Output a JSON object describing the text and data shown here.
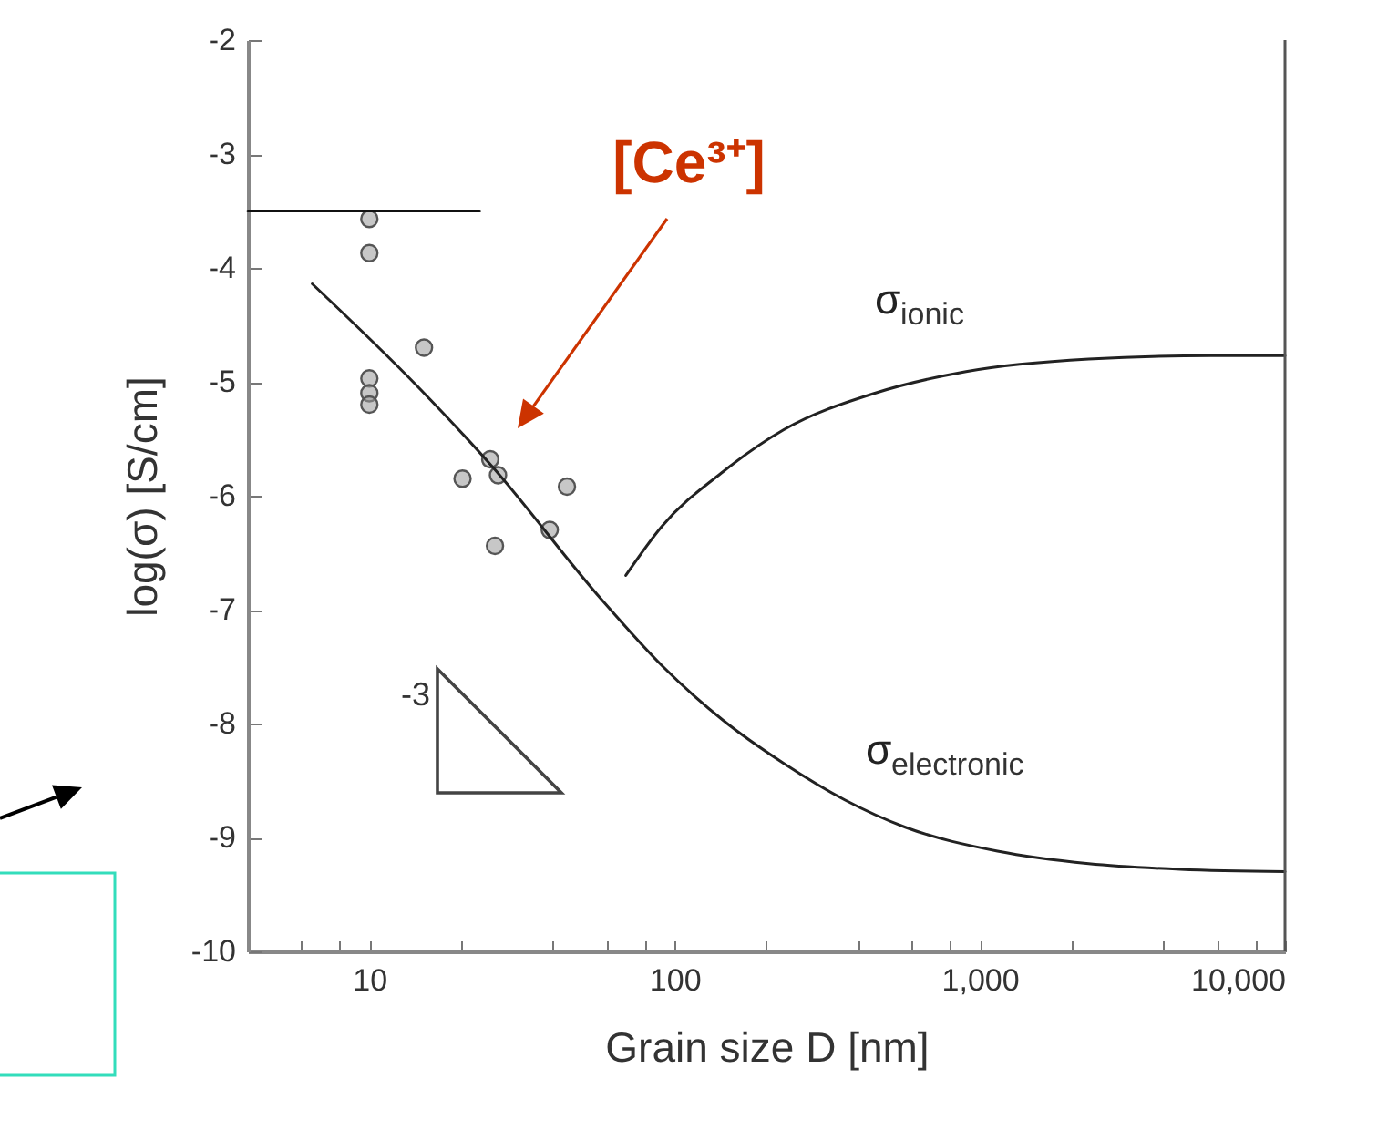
{
  "chart_data": {
    "type": "scatter",
    "xlabel": "Grain size D [nm]",
    "ylabel": "log(σ) [S/cm]",
    "log": "x",
    "xlim": [
      4,
      10000
    ],
    "ylim": [
      -10,
      -2
    ],
    "xticks": [
      {
        "value": 6,
        "label": null
      },
      {
        "value": 8,
        "label": null
      },
      {
        "value": 10,
        "label": "10"
      },
      {
        "value": 20,
        "label": null
      },
      {
        "value": 40,
        "label": null
      },
      {
        "value": 60,
        "label": null
      },
      {
        "value": 80,
        "label": null
      },
      {
        "value": 100,
        "label": "100"
      },
      {
        "value": 200,
        "label": null
      },
      {
        "value": 400,
        "label": null
      },
      {
        "value": 600,
        "label": null
      },
      {
        "value": 800,
        "label": null
      },
      {
        "value": 1000,
        "label": "1,000"
      },
      {
        "value": 2000,
        "label": null
      },
      {
        "value": 4000,
        "label": null
      },
      {
        "value": 6000,
        "label": null
      },
      {
        "value": 8000,
        "label": null
      },
      {
        "value": 10000,
        "label": "10,000"
      }
    ],
    "yticks": [
      -10,
      -9,
      -8,
      -7,
      -6,
      -5,
      -4,
      -3,
      -2
    ],
    "series": [
      {
        "marker": "circle",
        "color": "#999999",
        "x": [
          10,
          10,
          15.1,
          10,
          10,
          10,
          20.2,
          24.9,
          26.4,
          44.4,
          39,
          25.8
        ],
        "values": [
          -3.57,
          -3.87,
          -4.7,
          -4.97,
          -5.1,
          -5.2,
          -5.85,
          -5.68,
          -5.82,
          -5.92,
          -6.3,
          -6.44
        ]
      },
      {
        "type": "line",
        "name": "σ$_{ionic}$",
        "color": "#222222",
        "x": [
          69.2,
          90.8,
          144,
          228,
          453,
          902,
          2275,
          5700,
          10000
        ],
        "values": [
          -6.7,
          -6.27,
          -5.79,
          -5.42,
          -5.1,
          -4.91,
          -4.8,
          -4.77,
          -4.77
        ]
      },
      {
        "type": "line",
        "name": "σ$_{electronic}$",
        "color": "#222222",
        "x": [
          6.5,
          14.5,
          25.2,
          57.6,
          90.8,
          144,
          228,
          361,
          570,
          1143,
          2275,
          4540,
          10000
        ],
        "values": [
          -4.14,
          -5.05,
          -5.74,
          -6.91,
          -7.49,
          -7.97,
          -8.35,
          -8.67,
          -8.91,
          -9.12,
          -9.23,
          -9.28,
          -9.3
        ]
      },
      {
        "type": "line",
        "color": "#111111",
        "x": [
          4,
          23
        ],
        "values": [
          -3.5,
          -3.5
        ]
      }
    ],
    "annotations": [
      "[Ce³⁺]",
      "-3"
    ]
  }
}
